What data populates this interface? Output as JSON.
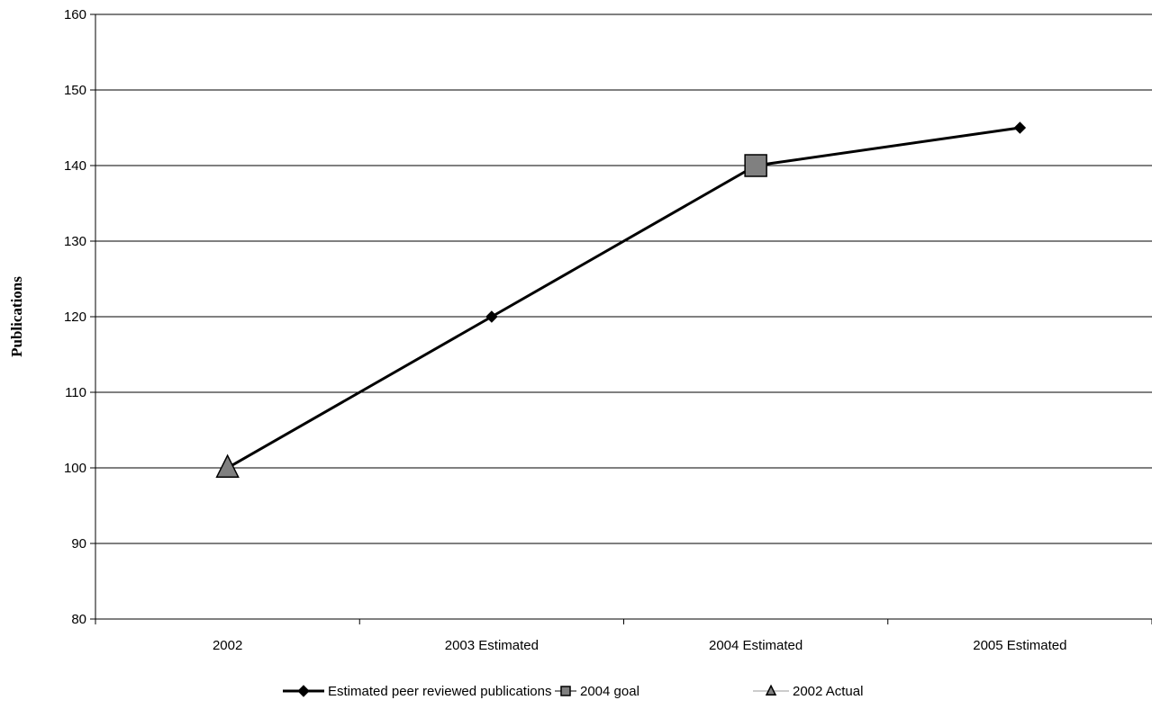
{
  "chart_data": {
    "type": "line",
    "title": "",
    "xlabel": "",
    "ylabel": "Publications",
    "categories": [
      "2002",
      "2003 Estimated",
      "2004 Estimated",
      "2005 Estimated"
    ],
    "ylim": [
      80,
      160
    ],
    "yticks": [
      80,
      90,
      100,
      110,
      120,
      130,
      140,
      150,
      160
    ],
    "grid": "horizontal",
    "legend_position": "bottom",
    "series": [
      {
        "name": "Estimated peer reviewed publications",
        "values": [
          100,
          120,
          140,
          145
        ],
        "color": "#000000",
        "marker": "diamond"
      },
      {
        "name": "2004 goal",
        "values": [
          null,
          null,
          140,
          null
        ],
        "color": "#666666",
        "marker": "square"
      },
      {
        "name": "2002 Actual",
        "values": [
          100,
          null,
          null,
          null
        ],
        "color": "#666666",
        "marker": "triangle"
      }
    ]
  }
}
